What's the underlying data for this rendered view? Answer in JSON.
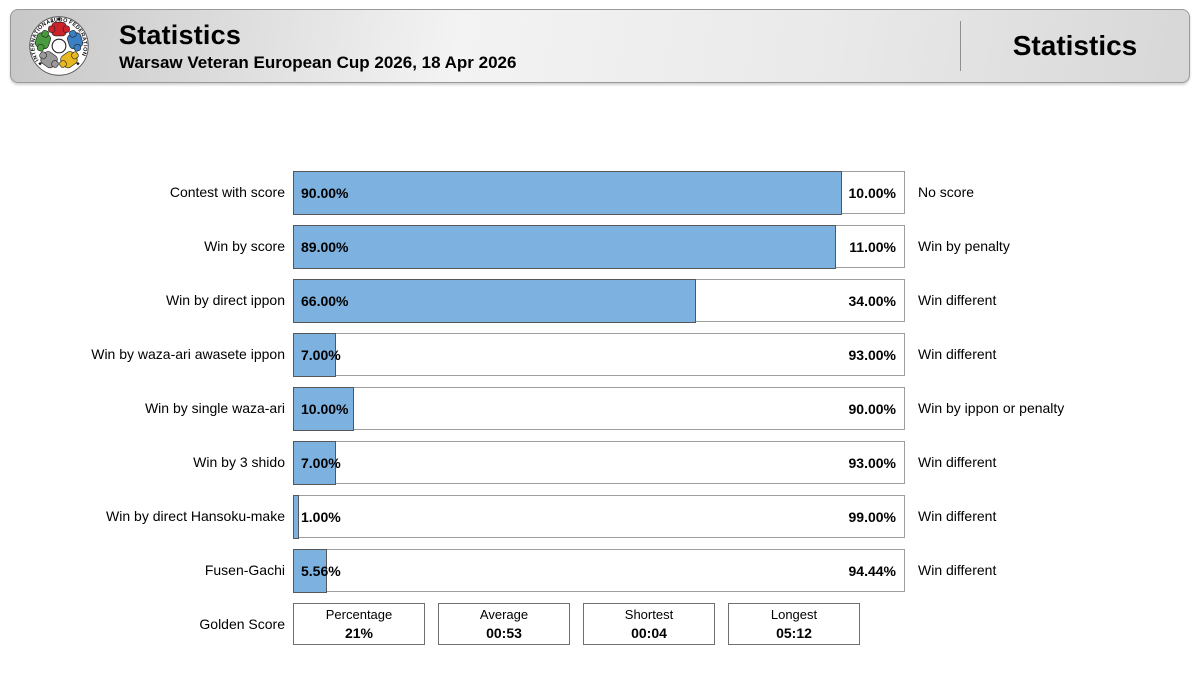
{
  "header": {
    "title": "Statistics",
    "subtitle": "Warsaw Veteran European Cup 2026, 18 Apr 2026",
    "right_title": "Statistics",
    "logo_name": "international-judo-federation-logo"
  },
  "colors": {
    "bar_fill_blue": "#7cb1e0",
    "bar_border": "#9e9e9e",
    "fill_border": "#565656",
    "header_border": "#9a9a9a"
  },
  "rows": [
    {
      "label": "Contest with score",
      "percent": 90,
      "left_pct_label": "90.00%",
      "right_pct_label": "10.00%",
      "right_label": "No score"
    },
    {
      "label": "Win by score",
      "percent": 89,
      "left_pct_label": "89.00%",
      "right_pct_label": "11.00%",
      "right_label": "Win by penalty"
    },
    {
      "label": "Win by direct ippon",
      "percent": 66,
      "left_pct_label": "66.00%",
      "right_pct_label": "34.00%",
      "right_label": "Win different"
    },
    {
      "label": "Win by waza-ari awasete ippon",
      "percent": 7,
      "left_pct_label": "7.00%",
      "right_pct_label": "93.00%",
      "right_label": "Win different"
    },
    {
      "label": "Win by single waza-ari",
      "percent": 10,
      "left_pct_label": "10.00%",
      "right_pct_label": "90.00%",
      "right_label": "Win by ippon or penalty"
    },
    {
      "label": "Win by 3 shido",
      "percent": 7,
      "left_pct_label": "7.00%",
      "right_pct_label": "93.00%",
      "right_label": "Win different"
    },
    {
      "label": "Win by direct Hansoku-make",
      "percent": 1,
      "left_pct_label": "1.00%",
      "right_pct_label": "99.00%",
      "right_label": "Win different"
    },
    {
      "label": "Fusen-Gachi",
      "percent": 5.56,
      "left_pct_label": "5.56%",
      "right_pct_label": "94.44%",
      "right_label": "Win different"
    }
  ],
  "golden_score": {
    "label": "Golden Score",
    "boxes": [
      {
        "title": "Percentage",
        "value": "21%"
      },
      {
        "title": "Average",
        "value": "00:53"
      },
      {
        "title": "Shortest",
        "value": "00:04"
      },
      {
        "title": "Longest",
        "value": "05:12"
      }
    ]
  },
  "chart_data": {
    "type": "bar",
    "orientation": "horizontal",
    "stacked": true,
    "title": "Statistics",
    "subtitle": "Warsaw Veteran European Cup 2026, 18 Apr 2026",
    "categories": [
      "Contest with score",
      "Win by score",
      "Win by direct ippon",
      "Win by waza-ari awasete ippon",
      "Win by single waza-ari",
      "Win by 3 shido",
      "Win by direct Hansoku-make",
      "Fusen-Gachi"
    ],
    "series": [
      {
        "name": "primary-share",
        "color": "#7cb1e0",
        "values": [
          90,
          89,
          66,
          7,
          10,
          7,
          1,
          5.56
        ]
      },
      {
        "name": "complement-share",
        "color": "#ffffff",
        "values": [
          10,
          11,
          34,
          93,
          90,
          93,
          99,
          94.44
        ]
      }
    ],
    "complement_labels": [
      "No score",
      "Win by penalty",
      "Win different",
      "Win different",
      "Win by ippon or penalty",
      "Win different",
      "Win different",
      "Win different"
    ],
    "xlim": [
      0,
      100
    ],
    "grid": false,
    "legend": false,
    "golden_score_summary": {
      "Percentage": "21%",
      "Average": "00:53",
      "Shortest": "00:04",
      "Longest": "05:12"
    }
  }
}
